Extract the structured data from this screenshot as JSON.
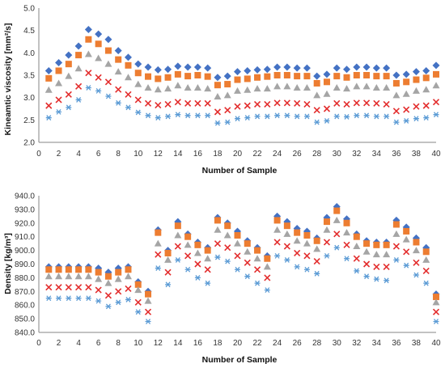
{
  "chart_data": [
    {
      "type": "scatter",
      "title": "",
      "xlabel": "Number of Sample",
      "ylabel": "Kineamtic viscosity [mm²/s]",
      "xlim": [
        0,
        40
      ],
      "ylim": [
        2.0,
        5.0
      ],
      "xticks": [
        "0",
        "2",
        "4",
        "6",
        "8",
        "10",
        "12",
        "14",
        "16",
        "18",
        "20",
        "22",
        "24",
        "26",
        "28",
        "30",
        "32",
        "34",
        "36",
        "38",
        "40"
      ],
      "yticks": [
        "2.0",
        "2.5",
        "3.0",
        "3.5",
        "4.0",
        "4.5",
        "5.0"
      ],
      "grid": false,
      "legend": "none",
      "x": [
        1,
        2,
        3,
        4,
        5,
        6,
        7,
        8,
        9,
        10,
        11,
        12,
        13,
        14,
        15,
        16,
        17,
        18,
        19,
        20,
        21,
        22,
        23,
        24,
        25,
        26,
        27,
        28,
        29,
        30,
        31,
        32,
        33,
        34,
        35,
        36,
        37,
        38,
        39,
        40
      ],
      "series": [
        {
          "marker": "diamond",
          "color": "#4472C4",
          "values": [
            3.6,
            3.78,
            3.95,
            4.15,
            4.52,
            4.42,
            4.3,
            4.05,
            3.9,
            3.75,
            3.68,
            3.62,
            3.63,
            3.7,
            3.68,
            3.68,
            3.66,
            3.45,
            3.48,
            3.58,
            3.6,
            3.62,
            3.63,
            3.68,
            3.68,
            3.66,
            3.66,
            3.48,
            3.52,
            3.66,
            3.63,
            3.68,
            3.68,
            3.66,
            3.66,
            3.5,
            3.52,
            3.58,
            3.6,
            3.72
          ]
        },
        {
          "marker": "square",
          "color": "#ED7D31",
          "values": [
            3.43,
            3.6,
            3.75,
            3.95,
            4.3,
            4.2,
            4.05,
            3.85,
            3.72,
            3.55,
            3.47,
            3.42,
            3.45,
            3.52,
            3.48,
            3.5,
            3.47,
            3.28,
            3.3,
            3.4,
            3.42,
            3.45,
            3.47,
            3.5,
            3.5,
            3.48,
            3.48,
            3.32,
            3.35,
            3.48,
            3.45,
            3.5,
            3.5,
            3.48,
            3.48,
            3.32,
            3.35,
            3.4,
            3.44,
            3.52
          ]
        },
        {
          "marker": "triangle",
          "color": "#A5A5A5",
          "values": [
            3.17,
            3.32,
            3.48,
            3.65,
            3.97,
            3.88,
            3.75,
            3.58,
            3.45,
            3.3,
            3.22,
            3.18,
            3.2,
            3.27,
            3.22,
            3.22,
            3.2,
            3.02,
            3.05,
            3.15,
            3.17,
            3.2,
            3.2,
            3.25,
            3.25,
            3.22,
            3.22,
            3.05,
            3.08,
            3.22,
            3.2,
            3.25,
            3.25,
            3.22,
            3.22,
            3.05,
            3.08,
            3.15,
            3.18,
            3.27
          ]
        },
        {
          "marker": "x",
          "color": "#E32E2E",
          "values": [
            2.82,
            2.95,
            3.07,
            3.25,
            3.55,
            3.45,
            3.35,
            3.18,
            3.07,
            2.95,
            2.87,
            2.83,
            2.85,
            2.9,
            2.87,
            2.87,
            2.87,
            2.68,
            2.72,
            2.8,
            2.82,
            2.85,
            2.85,
            2.88,
            2.88,
            2.87,
            2.85,
            2.72,
            2.75,
            2.87,
            2.85,
            2.88,
            2.88,
            2.87,
            2.85,
            2.7,
            2.73,
            2.8,
            2.82,
            2.9
          ]
        },
        {
          "marker": "star",
          "color": "#5B9BD5",
          "values": [
            2.55,
            2.68,
            2.78,
            2.95,
            3.22,
            3.15,
            3.03,
            2.88,
            2.78,
            2.67,
            2.6,
            2.55,
            2.58,
            2.62,
            2.6,
            2.6,
            2.6,
            2.43,
            2.45,
            2.53,
            2.55,
            2.58,
            2.58,
            2.6,
            2.6,
            2.58,
            2.58,
            2.45,
            2.48,
            2.58,
            2.57,
            2.6,
            2.6,
            2.58,
            2.58,
            2.45,
            2.48,
            2.53,
            2.55,
            2.62
          ]
        }
      ]
    },
    {
      "type": "scatter",
      "title": "",
      "xlabel": "Number of Sample",
      "ylabel": "Density [kg/m³]",
      "xlim": [
        0,
        40
      ],
      "ylim": [
        840,
        940
      ],
      "xticks": [
        "0",
        "2",
        "4",
        "6",
        "8",
        "10",
        "12",
        "14",
        "16",
        "18",
        "20",
        "22",
        "24",
        "26",
        "28",
        "30",
        "32",
        "34",
        "36",
        "38",
        "40"
      ],
      "yticks": [
        "840.0",
        "850.0",
        "860.0",
        "870.0",
        "880.0",
        "890.0",
        "900.0",
        "910.0",
        "920.0",
        "930.0",
        "940.0"
      ],
      "grid": false,
      "legend": "none",
      "x": [
        1,
        2,
        3,
        4,
        5,
        6,
        7,
        8,
        9,
        10,
        11,
        12,
        13,
        14,
        15,
        16,
        17,
        18,
        19,
        20,
        21,
        22,
        23,
        24,
        25,
        26,
        27,
        28,
        29,
        30,
        31,
        32,
        33,
        34,
        35,
        36,
        37,
        38,
        39,
        40
      ],
      "series": [
        {
          "marker": "diamond",
          "color": "#4472C4",
          "values": [
            888,
            888,
            888,
            888,
            888,
            887,
            884,
            887,
            888,
            877,
            870,
            915,
            900,
            921,
            912,
            906,
            902,
            924,
            920,
            914,
            907,
            902,
            896,
            925,
            921,
            916,
            914,
            909,
            924,
            932,
            923,
            912,
            907,
            906,
            906,
            922,
            917,
            909,
            902,
            868
          ]
        },
        {
          "marker": "square",
          "color": "#ED7D31",
          "values": [
            886,
            886,
            886,
            886,
            886,
            884,
            881,
            884,
            886,
            875,
            868,
            913,
            898,
            918,
            910,
            904,
            900,
            922,
            918,
            911,
            905,
            900,
            894,
            922,
            918,
            913,
            911,
            907,
            921,
            929,
            920,
            910,
            905,
            904,
            904,
            919,
            914,
            906,
            899,
            866
          ]
        },
        {
          "marker": "triangle",
          "color": "#A5A5A5",
          "values": [
            881,
            881,
            881,
            881,
            881,
            879,
            876,
            879,
            881,
            871,
            863,
            905,
            893,
            911,
            904,
            898,
            894,
            915,
            911,
            905,
            899,
            894,
            888,
            915,
            912,
            907,
            905,
            901,
            915,
            922,
            913,
            903,
            899,
            897,
            897,
            912,
            908,
            900,
            893,
            862
          ]
        },
        {
          "marker": "x",
          "color": "#E32E2E",
          "values": [
            873,
            873,
            873,
            873,
            873,
            871,
            867,
            870,
            872,
            862,
            855,
            897,
            884,
            903,
            896,
            890,
            886,
            905,
            902,
            896,
            891,
            886,
            880,
            906,
            903,
            898,
            896,
            892,
            906,
            912,
            904,
            894,
            890,
            888,
            888,
            903,
            899,
            891,
            885,
            855
          ]
        },
        {
          "marker": "star",
          "color": "#5B9BD5",
          "values": [
            865,
            865,
            865,
            865,
            865,
            863,
            859,
            862,
            864,
            855,
            848,
            887,
            875,
            893,
            886,
            880,
            876,
            895,
            892,
            886,
            881,
            876,
            871,
            896,
            893,
            888,
            886,
            883,
            896,
            902,
            894,
            885,
            881,
            879,
            878,
            893,
            889,
            882,
            876,
            848
          ]
        }
      ]
    }
  ]
}
